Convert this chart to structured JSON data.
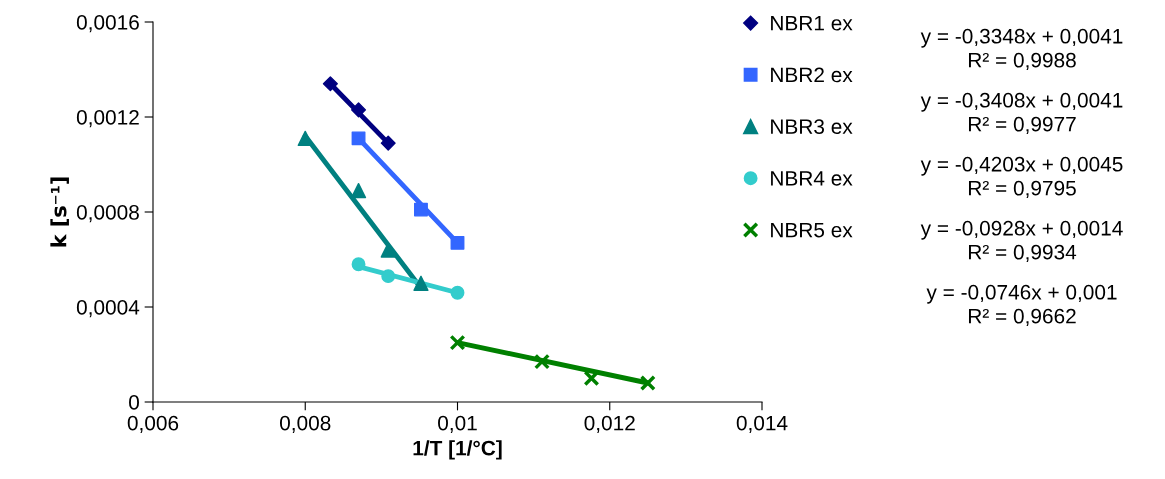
{
  "chart_data": {
    "type": "scatter",
    "xlabel": "1/T [1/°C]",
    "ylabel": "k [s⁻¹]",
    "xlim": [
      0.006,
      0.014
    ],
    "xticks": [
      {
        "value": 0.006,
        "label": "0,006"
      },
      {
        "value": 0.008,
        "label": "0,008"
      },
      {
        "value": 0.01,
        "label": "0,01"
      },
      {
        "value": 0.012,
        "label": "0,012"
      },
      {
        "value": 0.014,
        "label": "0,014"
      }
    ],
    "ylim": [
      0,
      0.0016
    ],
    "yticks": [
      {
        "value": 0,
        "label": "0"
      },
      {
        "value": 0.0004,
        "label": "0,0004"
      },
      {
        "value": 0.0008,
        "label": "0,0008"
      },
      {
        "value": 0.0012,
        "label": "0,0012"
      },
      {
        "value": 0.0016,
        "label": "0,0016"
      }
    ],
    "grid": false,
    "legend": "right",
    "series": [
      {
        "name": "NBR1 ex",
        "color": "#000080",
        "marker": "diamond",
        "x": [
          0.00833,
          0.0087,
          0.00909
        ],
        "values": [
          0.00134,
          0.00123,
          0.00109
        ]
      },
      {
        "name": "NBR2 ex",
        "color": "#3366ff",
        "marker": "square",
        "x": [
          0.0087,
          0.00952,
          0.01
        ],
        "values": [
          0.00111,
          0.00081,
          0.00067
        ]
      },
      {
        "name": "NBR3 ex",
        "color": "#008080",
        "marker": "triangle",
        "x": [
          0.008,
          0.0087,
          0.00909,
          0.00952
        ],
        "values": [
          0.00111,
          0.00089,
          0.00064,
          0.0005
        ]
      },
      {
        "name": "NBR4 ex",
        "color": "#33cccc",
        "marker": "circle",
        "x": [
          0.0087,
          0.00909,
          0.01
        ],
        "values": [
          0.00058,
          0.00053,
          0.00046
        ]
      },
      {
        "name": "NBR5 ex",
        "color": "#008000",
        "marker": "cross",
        "x": [
          0.01,
          0.01111,
          0.01176,
          0.0125
        ],
        "values": [
          0.00025,
          0.00017,
          0.0001,
          8e-05
        ]
      },
      {
        "type": "line",
        "color": "#000080",
        "x": [
          0.00833,
          0.00909
        ],
        "values": [
          0.00134,
          0.00109
        ]
      },
      {
        "type": "line",
        "color": "#3366ff",
        "x": [
          0.0087,
          0.01
        ],
        "values": [
          0.00111,
          0.00067
        ]
      },
      {
        "type": "line",
        "color": "#008080",
        "x": [
          0.008,
          0.00952
        ],
        "values": [
          0.00112,
          0.00048
        ]
      },
      {
        "type": "line",
        "color": "#33cccc",
        "x": [
          0.0087,
          0.01
        ],
        "values": [
          0.00057,
          0.00046
        ]
      },
      {
        "type": "line",
        "color": "#008000",
        "x": [
          0.01,
          0.0125
        ],
        "values": [
          0.00025,
          8e-05
        ]
      }
    ],
    "annotations": [
      "y = -0,3348x + 0,0041\nR² = 0,9988",
      "y = -0,3408x + 0,0041\nR² = 0,9977",
      "y = -0,4203x + 0,0045\nR² = 0,9795",
      "y = -0,0928x + 0,0014\nR² = 0,9934",
      "y = -0,0746x + 0,001\nR² = 0,9662"
    ]
  }
}
